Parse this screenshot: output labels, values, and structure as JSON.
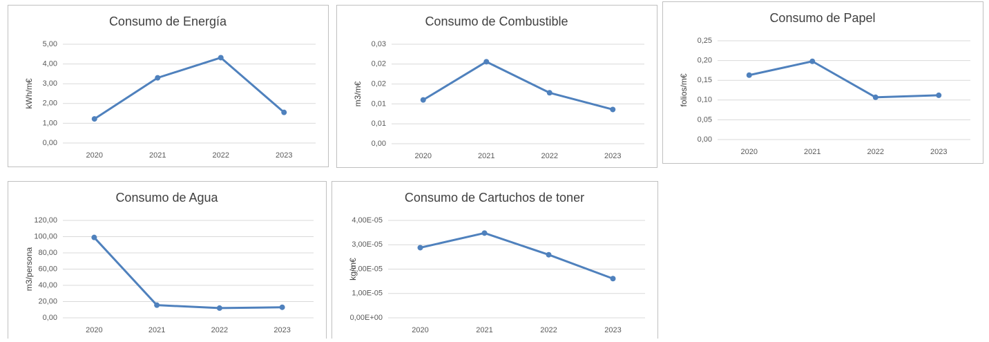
{
  "chart_data": [
    {
      "type": "line",
      "title": "Consumo de Energía",
      "y_label": "kWh/m€",
      "color": "#4f81bd",
      "grid": true,
      "categories": [
        "2020",
        "2021",
        "2022",
        "2023"
      ],
      "values": [
        1.22,
        3.3,
        4.32,
        1.55
      ],
      "ylim": [
        0,
        5
      ],
      "yticks": [
        {
          "value": 0,
          "label": "0,00"
        },
        {
          "value": 1,
          "label": "1,00"
        },
        {
          "value": 2,
          "label": "2,00"
        },
        {
          "value": 3,
          "label": "3,00"
        },
        {
          "value": 4,
          "label": "4,00"
        },
        {
          "value": 5,
          "label": "5,00"
        }
      ]
    },
    {
      "type": "line",
      "title": "Consumo de Combustible",
      "y_label": "m3/m€",
      "color": "#4f81bd",
      "grid": true,
      "categories": [
        "2020",
        "2021",
        "2022",
        "2023"
      ],
      "values": [
        0.011,
        0.0206,
        0.0128,
        0.0086
      ],
      "ylim": [
        0,
        0.025
      ],
      "yticks": [
        {
          "value": 0,
          "label": "0,00"
        },
        {
          "value": 0.005,
          "label": "0,01"
        },
        {
          "value": 0.01,
          "label": "0,01"
        },
        {
          "value": 0.015,
          "label": "0,02"
        },
        {
          "value": 0.02,
          "label": "0,02"
        },
        {
          "value": 0.025,
          "label": "0,03"
        }
      ]
    },
    {
      "type": "line",
      "title": "Consumo de Papel",
      "y_label": "folios/m€",
      "color": "#4f81bd",
      "grid": true,
      "categories": [
        "2020",
        "2021",
        "2022",
        "2023"
      ],
      "values": [
        0.163,
        0.198,
        0.107,
        0.112
      ],
      "ylim": [
        0,
        0.25
      ],
      "yticks": [
        {
          "value": 0,
          "label": "0,00"
        },
        {
          "value": 0.05,
          "label": "0,05"
        },
        {
          "value": 0.1,
          "label": "0,10"
        },
        {
          "value": 0.15,
          "label": "0,15"
        },
        {
          "value": 0.2,
          "label": "0,20"
        },
        {
          "value": 0.25,
          "label": "0,25"
        }
      ]
    },
    {
      "type": "line",
      "title": "Consumo de Agua",
      "y_label": "m3/persona",
      "color": "#4f81bd",
      "grid": true,
      "categories": [
        "2020",
        "2021",
        "2022",
        "2023"
      ],
      "values": [
        99,
        15.6,
        12,
        13
      ],
      "ylim": [
        0,
        120
      ],
      "yticks": [
        {
          "value": 0,
          "label": "0,00"
        },
        {
          "value": 20,
          "label": "20,00"
        },
        {
          "value": 40,
          "label": "40,00"
        },
        {
          "value": 60,
          "label": "60,00"
        },
        {
          "value": 80,
          "label": "80,00"
        },
        {
          "value": 100,
          "label": "100,00"
        },
        {
          "value": 120,
          "label": "120,00"
        }
      ]
    },
    {
      "type": "line",
      "title": "Consumo de Cartuchos de toner",
      "y_label": "kg/m€",
      "color": "#4f81bd",
      "grid": true,
      "categories": [
        "2020",
        "2021",
        "2022",
        "2023"
      ],
      "values": [
        2.88e-05,
        3.48e-05,
        2.59e-05,
        1.61e-05
      ],
      "ylim": [
        0,
        4e-05
      ],
      "yticks": [
        {
          "value": 0,
          "label": "0,00E+00"
        },
        {
          "value": 1e-05,
          "label": "1,00E-05"
        },
        {
          "value": 2e-05,
          "label": "2,00E-05"
        },
        {
          "value": 3e-05,
          "label": "3,00E-05"
        },
        {
          "value": 4e-05,
          "label": "4,00E-05"
        }
      ]
    }
  ]
}
